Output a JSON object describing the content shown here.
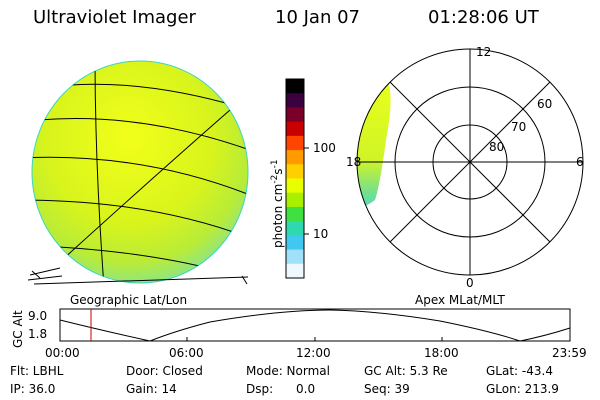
{
  "header": {
    "instrument": "Ultraviolet Imager",
    "date": "10 Jan 07",
    "time": "01:28:06 UT"
  },
  "left_panel": {
    "caption": "Geographic Lat/Lon"
  },
  "colorbar": {
    "unit": "photon cm",
    "unit_exp1": "-2",
    "unit_mid": "s",
    "unit_exp2": "-1",
    "ticks": [
      "100",
      "10"
    ],
    "colors": [
      "#000000",
      "#3a0040",
      "#7a0028",
      "#c80000",
      "#ff4500",
      "#ff9a00",
      "#ffd000",
      "#e8ff00",
      "#a8f000",
      "#40e040",
      "#30d8b0",
      "#40c8f0",
      "#a0e0f8",
      "#f0f8ff"
    ]
  },
  "polar_panel": {
    "caption": "Apex  MLat/MLT",
    "mlt_labels": {
      "top": "12",
      "left": "18",
      "right": "6",
      "bottom": "0"
    },
    "lat_labels": [
      "60",
      "70",
      "80"
    ]
  },
  "gc_alt_plot": {
    "ylabel": "GC Alt",
    "ytick_max": "9.0",
    "ytick_min": "1.8",
    "xticks": [
      "00:00",
      "06:00",
      "12:00",
      "18:00",
      "23:59"
    ]
  },
  "status": {
    "row1": [
      {
        "label": "Flt: LBHL"
      },
      {
        "label": "Door: Closed"
      },
      {
        "label": "Mode: Normal"
      },
      {
        "label": "GC Alt: 5.3 Re"
      },
      {
        "label": "GLat: -43.4"
      }
    ],
    "row2": [
      {
        "label": "IP: 36.0"
      },
      {
        "label": "Gain: 14"
      },
      {
        "label": "Dsp:      0.0"
      },
      {
        "label": "Seq: 39"
      },
      {
        "label": "GLon: 213.9"
      }
    ]
  }
}
